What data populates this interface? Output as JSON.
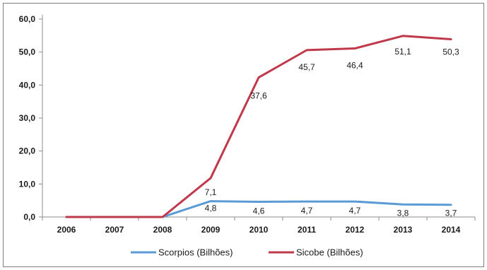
{
  "chart_data": {
    "type": "line",
    "title": "",
    "xlabel": "",
    "ylabel": "",
    "categories": [
      "2006",
      "2007",
      "2008",
      "2009",
      "2010",
      "2011",
      "2012",
      "2013",
      "2014"
    ],
    "ylim": [
      0,
      60
    ],
    "yticks": [
      "0,0",
      "10,0",
      "20,0",
      "30,0",
      "40,0",
      "50,0",
      "60,0"
    ],
    "grid": false,
    "legend_position": "bottom",
    "series": [
      {
        "name": "Scorpios (Bilhões)",
        "color": "#5b9bd5",
        "values": [
          0,
          0,
          0,
          4.8,
          4.6,
          4.7,
          4.7,
          3.8,
          3.7
        ],
        "labels": [
          "",
          "",
          "",
          "4,8",
          "4,6",
          "4,7",
          "4,7",
          "3,8",
          "3,7"
        ]
      },
      {
        "name": "Sicobe (Bilhões)",
        "color": "#c0394b",
        "values": [
          0,
          0,
          0,
          11.8,
          42.3,
          50.6,
          51.1,
          54.9,
          53.9
        ],
        "labels": [
          "",
          "",
          "",
          "7,1",
          "37,6",
          "45,7",
          "46,4",
          "51,1",
          "50,3"
        ]
      }
    ]
  }
}
